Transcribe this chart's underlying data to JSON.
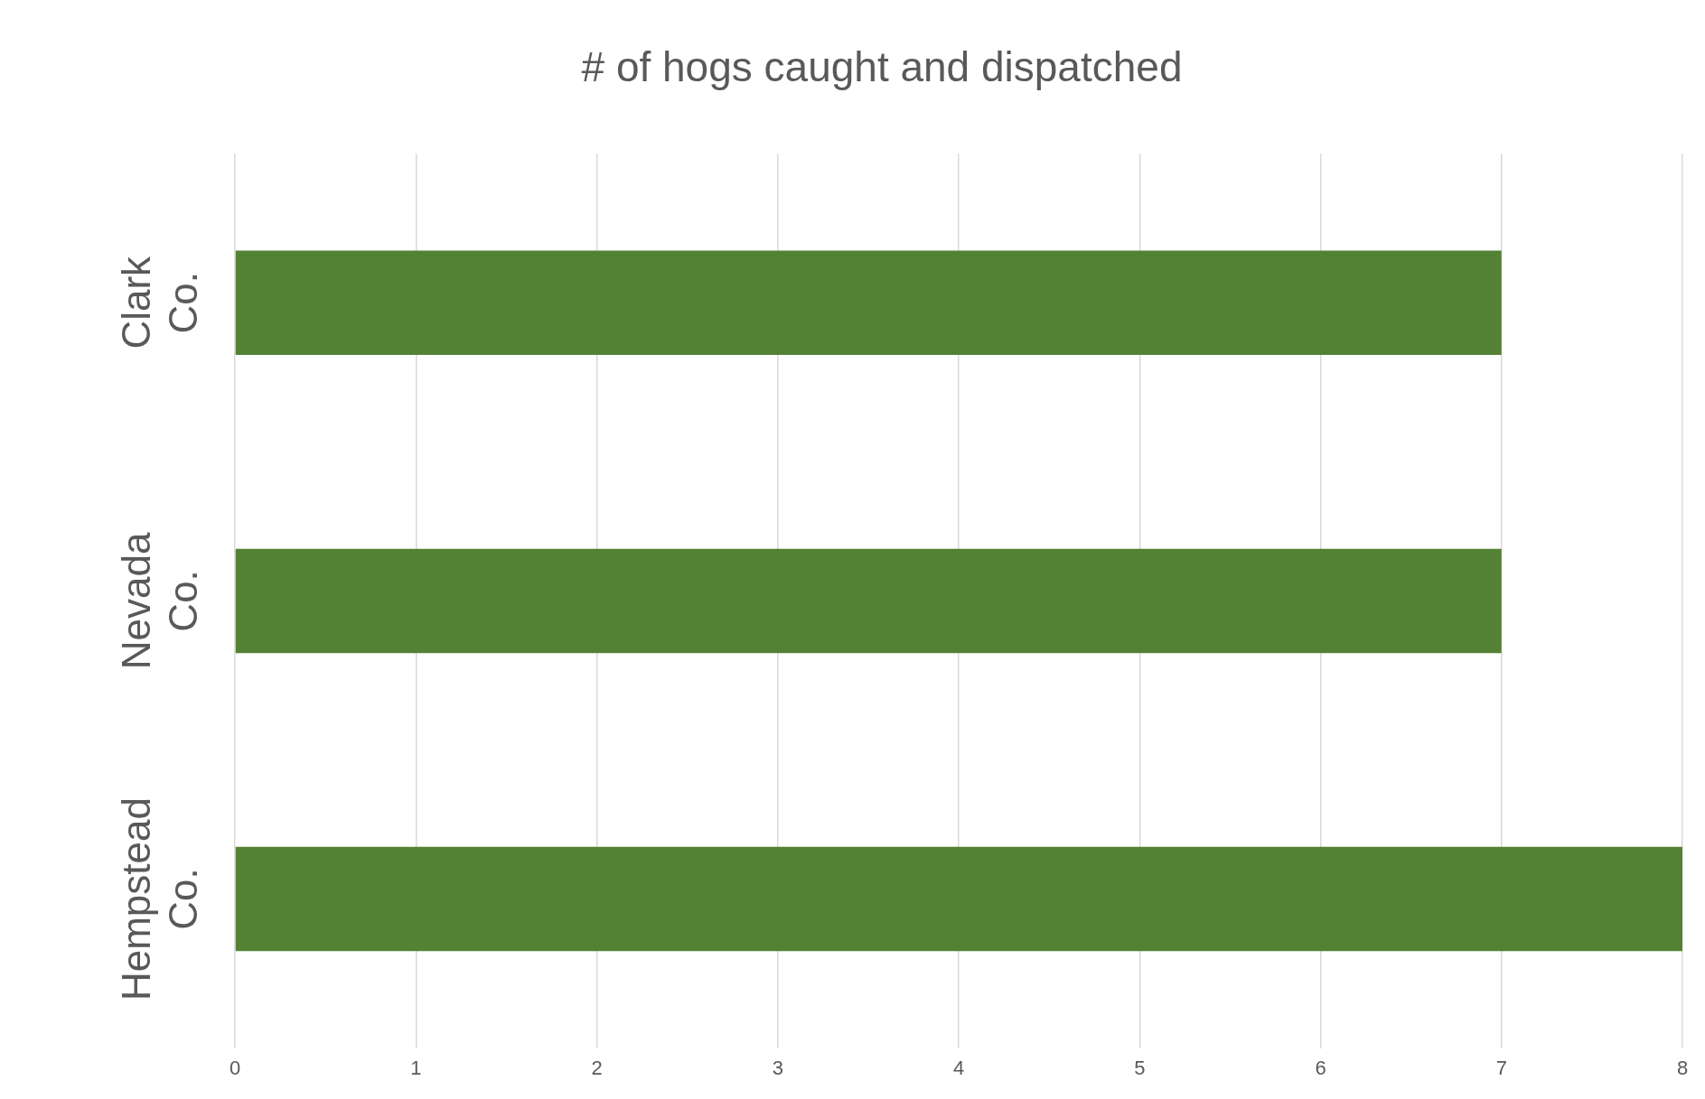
{
  "chart_data": {
    "type": "bar",
    "orientation": "horizontal",
    "title": "# of hogs caught and dispatched",
    "categories": [
      "Clark Co.",
      "Nevada Co.",
      "Hempstead Co."
    ],
    "values": [
      7,
      7,
      8
    ],
    "color": "#548235",
    "xlim": [
      0,
      8
    ],
    "xticks": [
      0,
      1,
      2,
      3,
      4,
      5,
      6,
      7,
      8
    ],
    "grid": "x",
    "legend": false
  }
}
